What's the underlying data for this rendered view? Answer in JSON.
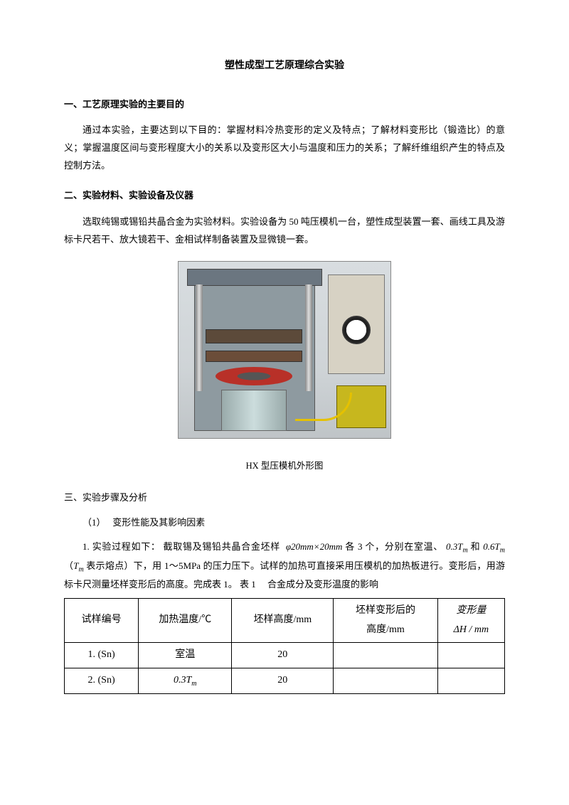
{
  "title": "塑性成型工艺原理综合实验",
  "section1": {
    "heading": "一、工艺原理实验的主要目的",
    "para": "通过本实验，主要达到以下目的：掌握材料冷热变形的定义及特点；了解材料变形比（锻造比）的意义；掌握温度区间与变形程度大小的关系以及变形区大小与温度和压力的关系；了解纤维组织产生的特点及控制方法。"
  },
  "section2": {
    "heading": "二、实验材料、实验设备及仪器",
    "para": "选取纯锡或锡铅共晶合金为实验材料。实验设备为 50 吨压模机一台，塑性成型装置一套、画线工具及游标卡尺若干、放大镜若干、金相试样制备装置及显微镜一套。",
    "caption": "HX 型压模机外形图"
  },
  "section3": {
    "heading": "三、实验步骤及分析",
    "item1": "（1）　 变形性能及其影响因素",
    "exp1_a": "1. 实验过程如下： 截取锡及锡铅共晶合金坯样",
    "phi": "φ20mm×20mm",
    "exp1_b": "各 3 个，分别在室温、",
    "t03": "0.3T",
    "and": "和",
    "t06": "0.6T",
    "tm_note_a": "（",
    "tm": "T",
    "tm_note_b": "表示熔点）下，用 1～5MPa 的压力压下。试样的加热可直接采用压模机的加热板进行。变形后，用游标卡尺测量坯样变形后的高度。完成表 1。 表 1　 合金成分及变形温度的影响"
  },
  "table": {
    "headers": [
      "试样编号",
      "加热温度/℃",
      "坯样高度/mm",
      "坯样变形后的\n高度/mm",
      "变形量\nΔH / mm"
    ],
    "rows": [
      {
        "no": "1. (Sn)",
        "temp_text": "室温",
        "temp_formula": "",
        "h0": "20",
        "h1": "",
        "dh": ""
      },
      {
        "no": "2. (Sn)",
        "temp_text": "",
        "temp_formula": "0.3T",
        "h0": "20",
        "h1": "",
        "dh": ""
      }
    ]
  }
}
